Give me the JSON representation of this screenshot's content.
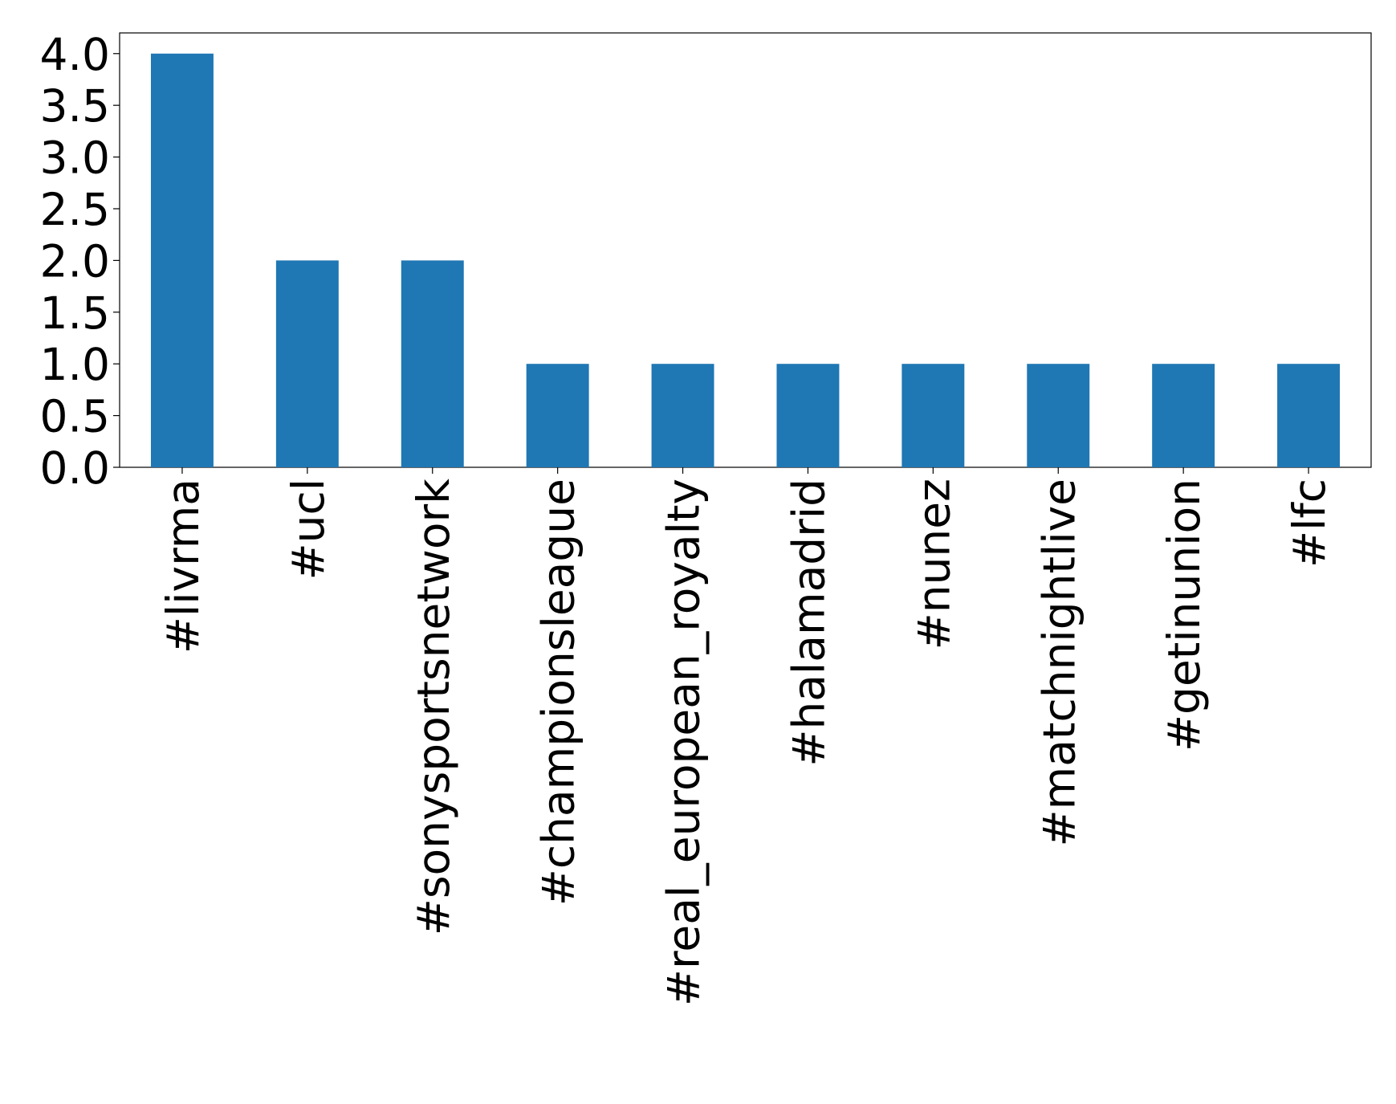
{
  "chart_data": {
    "type": "bar",
    "categories": [
      "#livrma",
      "#ucl",
      "#sonysportsnetwork",
      "#championsleague",
      "#real_european_royalty",
      "#halamadrid",
      "#nunez",
      "#matchnightlive",
      "#getinunion",
      "#lfc"
    ],
    "values": [
      4,
      2,
      2,
      1,
      1,
      1,
      1,
      1,
      1,
      1
    ],
    "color": "#1f77b4",
    "ylim": [
      0,
      4.2
    ],
    "yticks": [
      {
        "value": 0,
        "label": "0.0"
      },
      0.5,
      {
        "value": 1,
        "label": "1.0"
      },
      1.5,
      {
        "value": 2,
        "label": "2.0"
      },
      2.5,
      {
        "value": 3,
        "label": "3.0"
      },
      3.5,
      {
        "value": 4,
        "label": "4.0"
      }
    ],
    "grid": false
  }
}
